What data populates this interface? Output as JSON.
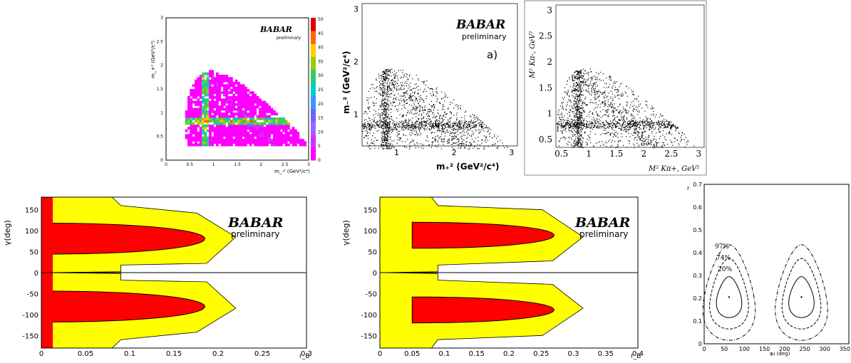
{
  "chart_data": [
    {
      "type": "heatmap",
      "brand": "BABAR",
      "subtitle": "preliminary",
      "xlabel": "m_-² (GeV²/c⁴)",
      "ylabel": "m_+² (GeV²/c⁴)",
      "xlim": [
        0,
        3
      ],
      "ylim": [
        0,
        3
      ],
      "x_ticks": [
        "0",
        "0.5",
        "1",
        "1.5",
        "2",
        "2.5",
        "3"
      ],
      "y_ticks": [
        "0",
        "0.5",
        "1",
        "1.5",
        "2",
        "2.5",
        "3"
      ],
      "colorbar_ticks": [
        "0",
        "5",
        "10",
        "15",
        "20",
        "25",
        "30",
        "35",
        "40",
        "45",
        "50"
      ]
    },
    {
      "type": "scatter",
      "brand": "BABAR",
      "subtitle": "preliminary",
      "annotation": "a)",
      "xlabel": "m₊² (GeV²/c⁴)",
      "ylabel": "m₋² (GeV²/c⁴)",
      "xlim": [
        0.4,
        3.1
      ],
      "ylim": [
        0.4,
        3.1
      ],
      "x_ticks": [
        "1",
        "2",
        "3"
      ],
      "y_ticks": [
        "1",
        "2",
        "3"
      ]
    },
    {
      "type": "scatter",
      "xlabel": "M² Kπ+, GeV²",
      "ylabel": "M² Kπ-, GeV²",
      "xlim": [
        0.4,
        3.1
      ],
      "ylim": [
        0.35,
        3.1
      ],
      "x_ticks": [
        "0.5",
        "1",
        "1.5",
        "2",
        "2.5",
        "3"
      ],
      "y_ticks": [
        "0.5",
        "1",
        "1.5",
        "2",
        "2.5",
        "3"
      ]
    },
    {
      "type": "area",
      "brand": "BABAR",
      "subtitle": "preliminary",
      "xlabel": "r_B",
      "ylabel": "γ(deg)",
      "xlim": [
        0,
        0.3
      ],
      "ylim": [
        -180,
        180
      ],
      "x_ticks": [
        "0",
        "0.05",
        "0.1",
        "0.15",
        "0.2",
        "0.25",
        "0.3"
      ],
      "y_ticks": [
        "-150",
        "-100",
        "-50",
        "0",
        "50",
        "100",
        "150"
      ],
      "regions": [
        {
          "level": "inner",
          "color": "#ff0000",
          "gamma_range": [
            44,
            118
          ],
          "r_max": 0.185
        },
        {
          "level": "outer",
          "color": "#ffff00",
          "gamma_range": [
            22,
            142
          ],
          "r_max": 0.22
        }
      ]
    },
    {
      "type": "area",
      "brand": "BABAR",
      "subtitle": "preliminary",
      "xlabel": "r_B",
      "ylabel": "γ(deg)",
      "xlim": [
        0,
        0.4
      ],
      "ylim": [
        -180,
        180
      ],
      "x_ticks": [
        "0",
        "0.05",
        "0.1",
        "0.15",
        "0.2",
        "0.25",
        "0.3",
        "0.35",
        "0.4"
      ],
      "y_ticks": [
        "-150",
        "-100",
        "-50",
        "0",
        "50",
        "100",
        "150"
      ],
      "regions": [
        {
          "level": "inner",
          "color": "#ff0000",
          "gamma_range": [
            58,
            120
          ],
          "r_range": [
            0.05,
            0.27
          ]
        },
        {
          "level": "outer",
          "color": "#ffff00",
          "gamma_range": [
            28,
            150
          ],
          "r_max": 0.315
        }
      ]
    },
    {
      "type": "line",
      "xlabel": "φ₃ (deg)",
      "ylabel": "r",
      "xlim": [
        0,
        360
      ],
      "ylim": [
        0,
        0.7
      ],
      "x_ticks": [
        "0",
        "50",
        "100",
        "150",
        "200",
        "250",
        "300",
        "350"
      ],
      "y_ticks": [
        "0",
        "0.1",
        "0.2",
        "0.3",
        "0.4",
        "0.5",
        "0.6",
        "0.7"
      ],
      "contour_labels": [
        "97%",
        "74%",
        "20%"
      ],
      "minima": [
        {
          "x": 62,
          "y": 0.205
        },
        {
          "x": 242,
          "y": 0.205
        }
      ]
    }
  ]
}
